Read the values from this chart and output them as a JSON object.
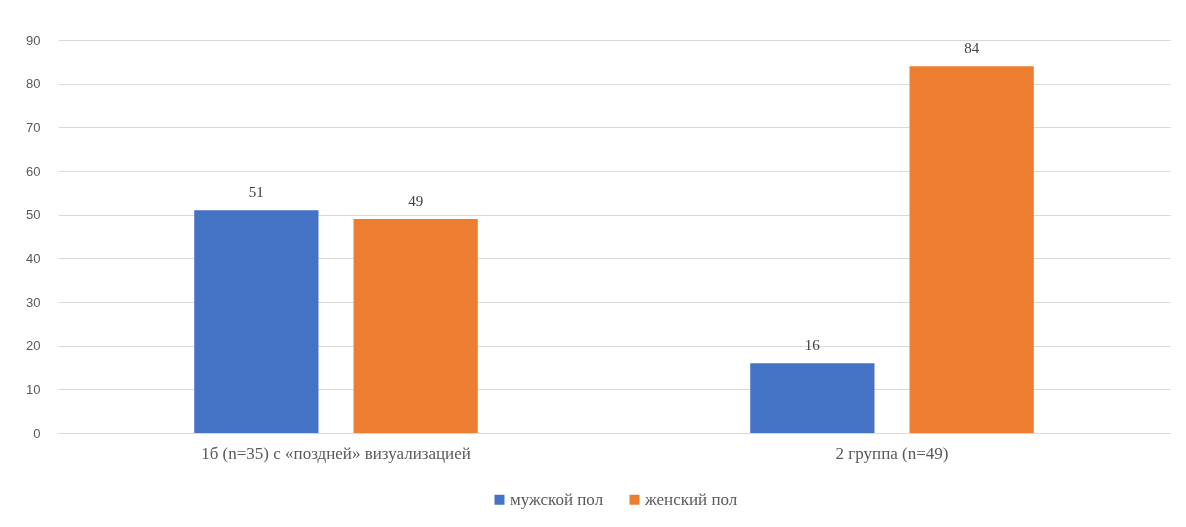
{
  "chart_data": {
    "type": "bar",
    "categories": [
      "1б (n=35) с «поздней» визуализацией",
      "2 группа (n=49)"
    ],
    "series": [
      {
        "name": "мужской пол",
        "color": "#4472c4",
        "values": [
          51,
          16
        ]
      },
      {
        "name": "женский пол",
        "color": "#ed7d31",
        "values": [
          49,
          84
        ]
      }
    ],
    "ylim": [
      0,
      90
    ],
    "yticks": [
      0,
      10,
      20,
      30,
      40,
      50,
      60,
      70,
      80,
      90
    ],
    "grid": "y",
    "legend": "bottom",
    "data_labels": true
  }
}
